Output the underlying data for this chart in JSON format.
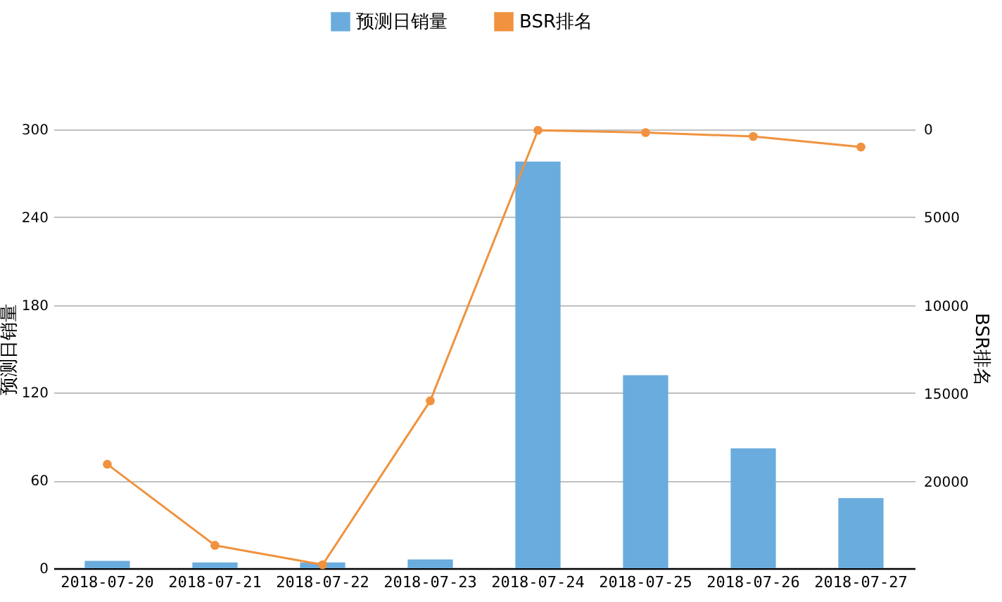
{
  "chart_data": {
    "type": "bar",
    "categories": [
      "2018-07-20",
      "2018-07-21",
      "2018-07-22",
      "2018-07-23",
      "2018-07-24",
      "2018-07-25",
      "2018-07-26",
      "2018-07-27"
    ],
    "series": [
      {
        "name": "预测日销量",
        "color": "#6aacdd",
        "values": [
          5,
          4,
          4,
          6,
          278,
          132,
          82,
          48
        ]
      },
      {
        "name": "BSR排名",
        "type": "line",
        "axis": "y2",
        "color": "#f0923e",
        "values": [
          19000,
          23600,
          24700,
          15400,
          50,
          180,
          400,
          1000
        ]
      }
    ],
    "ylabel": "预测日销量",
    "y2label": "BSR排名",
    "ylim": [
      0,
      300
    ],
    "yticks": [
      0,
      60,
      120,
      180,
      240,
      300
    ],
    "y2lim": [
      24900,
      0
    ],
    "y2ticks": [
      0,
      5000,
      10000,
      15000,
      20000
    ],
    "grid": "y",
    "legend": "top",
    "marker": "circle",
    "line_style": "solid"
  }
}
